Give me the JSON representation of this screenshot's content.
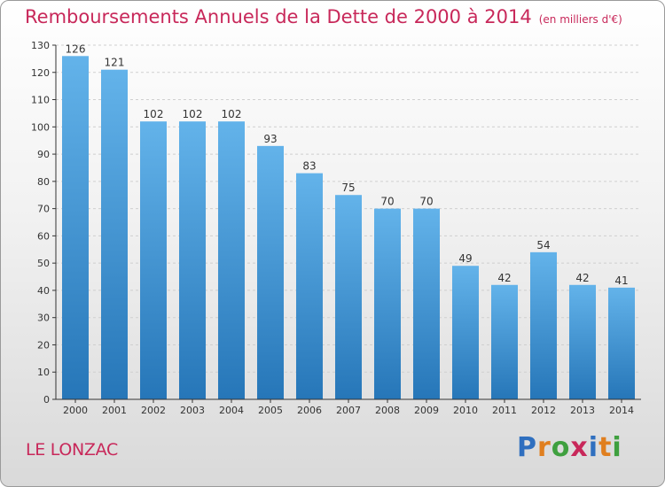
{
  "title": "Remboursements Annuels de la Dette de 2000 à 2014",
  "title_unit": "(en milliers d'€)",
  "commune": "LE LONZAC",
  "logo": {
    "text": "Proxiti",
    "letter_colors": [
      "#2f6fbf",
      "#e07f1f",
      "#3fa03f",
      "#c8285a",
      "#2f6fbf",
      "#e07f1f",
      "#3fa03f"
    ]
  },
  "colors": {
    "title": "#c8285a",
    "bar_top": "#63b3ea",
    "bar_bottom": "#2676b8",
    "axis": "#333333",
    "grid": "#cfcfcf"
  },
  "chart_data": {
    "type": "bar",
    "title": "Remboursements Annuels de la Dette de 2000 à 2014",
    "unit": "(en milliers d'€)",
    "xlabel": "",
    "ylabel": "",
    "ylim": [
      0,
      130
    ],
    "yticks": [
      0,
      10,
      20,
      30,
      40,
      50,
      60,
      70,
      80,
      90,
      100,
      110,
      120,
      130
    ],
    "grid": true,
    "categories": [
      "2000",
      "2001",
      "2002",
      "2003",
      "2004",
      "2005",
      "2006",
      "2007",
      "2008",
      "2009",
      "2010",
      "2011",
      "2012",
      "2013",
      "2014"
    ],
    "values": [
      126,
      121,
      102,
      102,
      102,
      93,
      83,
      75,
      70,
      70,
      49,
      42,
      54,
      42,
      41
    ]
  }
}
